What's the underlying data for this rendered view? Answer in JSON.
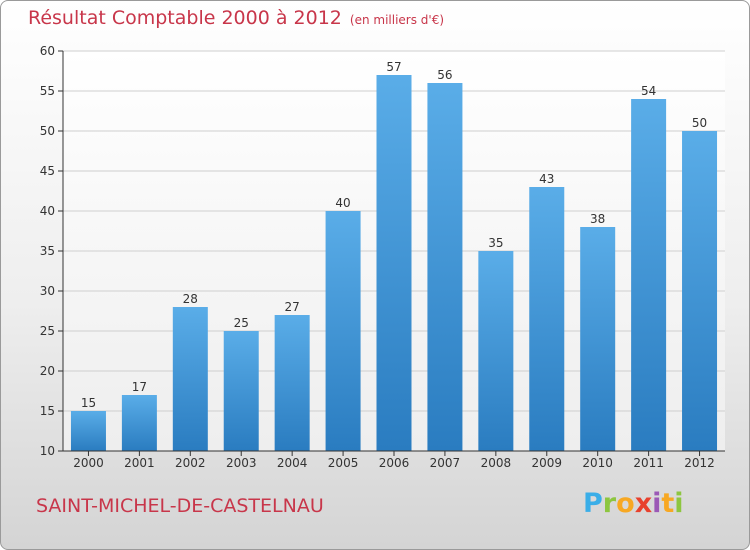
{
  "chart_data": {
    "type": "bar",
    "title": "Résultat Comptable 2000 à 2012",
    "subtitle": "(en milliers d'€)",
    "xlabel": "",
    "ylabel": "",
    "categories": [
      "2000",
      "2001",
      "2002",
      "2003",
      "2004",
      "2005",
      "2006",
      "2007",
      "2008",
      "2009",
      "2010",
      "2011",
      "2012"
    ],
    "values": [
      15,
      17,
      28,
      25,
      27,
      40,
      57,
      56,
      35,
      43,
      38,
      54,
      50
    ],
    "ylim": [
      10,
      60
    ],
    "yticks": [
      10,
      15,
      20,
      25,
      30,
      35,
      40,
      45,
      50,
      55,
      60
    ],
    "grid": true,
    "bar_color": "#4a9de0"
  },
  "footer": {
    "city": "SAINT-MICHEL-DE-CASTELNAU",
    "logo": {
      "letters": [
        "P",
        "r",
        "o",
        "x",
        "i",
        "t",
        "i"
      ],
      "colors": [
        "#3aaee8",
        "#8dc63f",
        "#f7a823",
        "#e8412d",
        "#9b59b6",
        "#f7a823",
        "#8dc63f"
      ]
    }
  }
}
